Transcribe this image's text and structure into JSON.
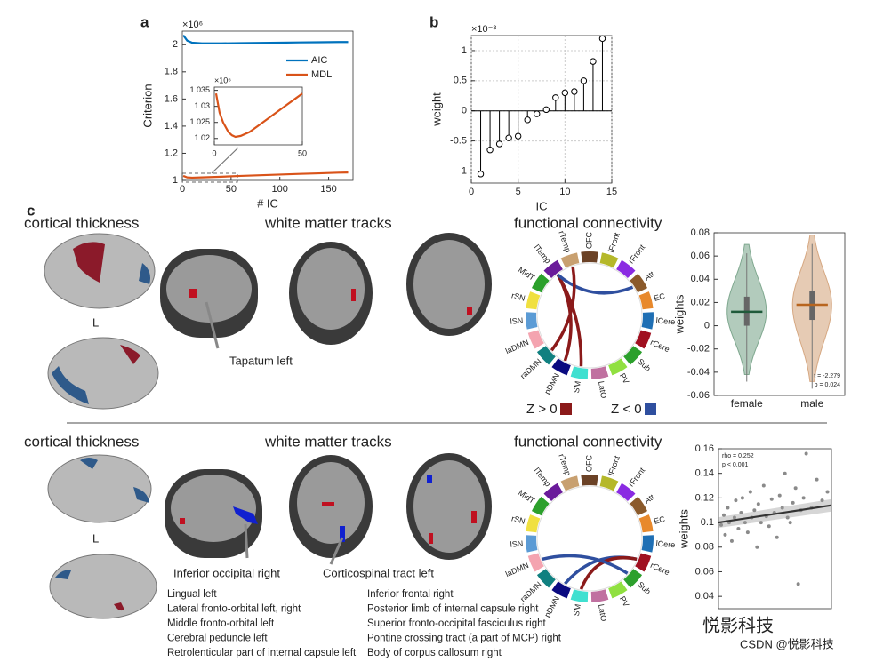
{
  "panels": [
    "a",
    "b",
    "c"
  ],
  "chart_data": [
    {
      "type": "line",
      "xlabel": "# IC",
      "ylabel": "Criterion",
      "exponent": "×10⁶",
      "xlim": [
        0,
        175
      ],
      "ylim": [
        1,
        2.1
      ],
      "xticks": [
        0,
        50,
        100,
        150
      ],
      "yticks": [
        1,
        1.2,
        1.4,
        1.6,
        1.8,
        2
      ],
      "x": [
        1,
        5,
        10,
        20,
        40,
        60,
        80,
        100,
        120,
        140,
        160,
        170
      ],
      "series": [
        {
          "name": "AIC",
          "color": "#0072bd",
          "values": [
            2.07,
            2.03,
            2.015,
            2.01,
            2.01,
            2.012,
            2.013,
            2.015,
            2.017,
            2.018,
            2.02,
            2.02
          ]
        },
        {
          "name": "MDL",
          "color": "#d95319",
          "values": [
            1.033,
            1.022,
            1.02,
            1.022,
            1.027,
            1.033,
            1.038,
            1.043,
            1.048,
            1.052,
            1.057,
            1.058
          ]
        }
      ],
      "inset": {
        "exponent": "×10⁶",
        "xlim": [
          0,
          50
        ],
        "ylim": [
          1.018,
          1.036
        ],
        "xticks": [
          0,
          50
        ],
        "yticks": [
          1.02,
          1.025,
          1.03,
          1.035
        ],
        "x": [
          1,
          3,
          5,
          8,
          10,
          12,
          15,
          20,
          25,
          30,
          35,
          40,
          45,
          50
        ],
        "color": "#d95319",
        "values": [
          1.034,
          1.028,
          1.025,
          1.022,
          1.021,
          1.0205,
          1.0208,
          1.022,
          1.024,
          1.026,
          1.028,
          1.03,
          1.032,
          1.034
        ]
      }
    },
    {
      "type": "stem",
      "xlabel": "IC",
      "ylabel": "weight",
      "exponent": "×10⁻³",
      "grid": true,
      "color": "#000000",
      "xlim": [
        0,
        15
      ],
      "ylim": [
        -1.2,
        1.25
      ],
      "xticks": [
        0,
        5,
        10,
        15
      ],
      "yticks": [
        -1,
        -0.5,
        0,
        0.5,
        1
      ],
      "x": [
        1,
        2,
        3,
        4,
        5,
        6,
        7,
        8,
        9,
        10,
        11,
        12,
        13,
        14
      ],
      "values": [
        -1.05,
        -0.65,
        -0.55,
        -0.45,
        -0.42,
        -0.15,
        -0.05,
        0.02,
        0.22,
        0.3,
        0.32,
        0.5,
        0.82,
        1.2
      ]
    },
    {
      "type": "violin",
      "ylabel": "weights",
      "ylim": [
        -0.06,
        0.08
      ],
      "yticks": [
        -0.06,
        -0.04,
        -0.02,
        0,
        0.02,
        0.04,
        0.06,
        0.08
      ],
      "categories": [
        "female",
        "male"
      ],
      "annotations": [
        "t = -2.279",
        "p = 0.024"
      ],
      "series": [
        {
          "name": "female",
          "color": "#7fa88f",
          "line": "#1f5a3a",
          "min": -0.042,
          "q1": 0.0,
          "median": 0.012,
          "q3": 0.025,
          "max": 0.07
        },
        {
          "name": "male",
          "color": "#d6a882",
          "line": "#b8651f",
          "min": -0.048,
          "q1": 0.005,
          "median": 0.018,
          "q3": 0.03,
          "max": 0.078
        }
      ]
    },
    {
      "type": "scatter",
      "ylabel": "weights",
      "color": "#8a8a8a",
      "annotations": [
        "rho = 0.252",
        "p < 0.001"
      ],
      "xlim": [
        0,
        85
      ],
      "ylim": [
        0.03,
        0.16
      ],
      "yticks": [
        0.04,
        0.06,
        0.08,
        0.1,
        0.12,
        0.14,
        0.16
      ],
      "x": [
        2,
        4,
        5,
        7,
        8,
        10,
        12,
        13,
        15,
        17,
        18,
        20,
        22,
        24,
        25,
        27,
        29,
        30,
        32,
        34,
        36,
        38,
        40,
        42,
        44,
        46,
        48,
        50,
        52,
        54,
        56,
        58,
        60,
        62,
        64,
        66,
        70,
        74,
        78,
        82
      ],
      "values": [
        0.098,
        0.106,
        0.09,
        0.112,
        0.1,
        0.085,
        0.104,
        0.118,
        0.095,
        0.108,
        0.12,
        0.1,
        0.092,
        0.125,
        0.104,
        0.11,
        0.08,
        0.115,
        0.1,
        0.13,
        0.105,
        0.097,
        0.119,
        0.108,
        0.088,
        0.122,
        0.112,
        0.14,
        0.104,
        0.1,
        0.116,
        0.128,
        0.05,
        0.11,
        0.12,
        0.156,
        0.112,
        0.135,
        0.118,
        0.125
      ],
      "trend": {
        "x": [
          0,
          85
        ],
        "values": [
          0.1,
          0.114
        ],
        "color": "#333333"
      }
    }
  ],
  "rows": [
    {
      "cortical": "cortical thickness",
      "hemisphere": "L",
      "white": "white matter tracks",
      "fc": "functional connectivity",
      "tracts": [
        "Tapatum left"
      ]
    },
    {
      "cortical": "cortical thickness",
      "hemisphere": "L",
      "white": "white matter tracks",
      "fc": "functional connectivity",
      "tracts": [
        "Inferior occipital right",
        "Corticospinal tract left"
      ],
      "list_left": [
        "Lingual left",
        "Lateral fronto-orbital left, right",
        "Middle fronto-orbital left",
        "Cerebral peduncle left",
        "Retrolenticular part of internal capsule left"
      ],
      "list_right": [
        "Inferior frontal right",
        "Posterior limb of internal capsule right",
        "Superior fronto-occipital fasciculus right",
        "Pontine crossing tract (a part of MCP) right",
        "Body of corpus callosum right"
      ]
    }
  ],
  "networks": [
    {
      "name": "OFC",
      "color": "#6b4226"
    },
    {
      "name": "lFront",
      "color": "#b5b82a"
    },
    {
      "name": "rFront",
      "color": "#8a2be2"
    },
    {
      "name": "Att",
      "color": "#8b5a2b"
    },
    {
      "name": "EC",
      "color": "#e8892c"
    },
    {
      "name": "lCere",
      "color": "#1f6fb4"
    },
    {
      "name": "rCere",
      "color": "#a01020"
    },
    {
      "name": "Sub",
      "color": "#2ca02c"
    },
    {
      "name": "PV",
      "color": "#90e040"
    },
    {
      "name": "LatO",
      "color": "#c070a0"
    },
    {
      "name": "SM",
      "color": "#40e0d0"
    },
    {
      "name": "pDMN",
      "color": "#0a0a80"
    },
    {
      "name": "raDMN",
      "color": "#108080"
    },
    {
      "name": "laDMN",
      "color": "#f4a4b0"
    },
    {
      "name": "lSN",
      "color": "#5b9bd5"
    },
    {
      "name": "rSN",
      "color": "#f0e040"
    },
    {
      "name": "MidT",
      "color": "#2ca02c"
    },
    {
      "name": "lTemp",
      "color": "#6a1b9a"
    },
    {
      "name": "rTemp",
      "color": "#c8a070"
    }
  ],
  "connectivity": [
    {
      "links": [
        {
          "from": "lTemp",
          "to": "SM",
          "color": "#8b1a1a"
        },
        {
          "from": "lTemp",
          "to": "pDMN",
          "color": "#8b1a1a"
        },
        {
          "from": "lTemp",
          "to": "Att",
          "color": "#2f4f9f"
        },
        {
          "from": "rTemp",
          "to": "raDMN",
          "color": "#8b1a1a"
        }
      ]
    },
    {
      "links": [
        {
          "from": "pDMN",
          "to": "rCere",
          "color": "#2f4f9f"
        },
        {
          "from": "SM",
          "to": "rCere",
          "color": "#8b1a1a"
        },
        {
          "from": "laDMN",
          "to": "Sub",
          "color": "#2f4f9f"
        }
      ]
    }
  ],
  "legend": [
    {
      "label": "Z > 0",
      "color": "#8b1a1a"
    },
    {
      "label": "Z < 0",
      "color": "#2f4f9f"
    }
  ],
  "watermark": [
    "悦影科技",
    "CSDN @悦影科技"
  ]
}
